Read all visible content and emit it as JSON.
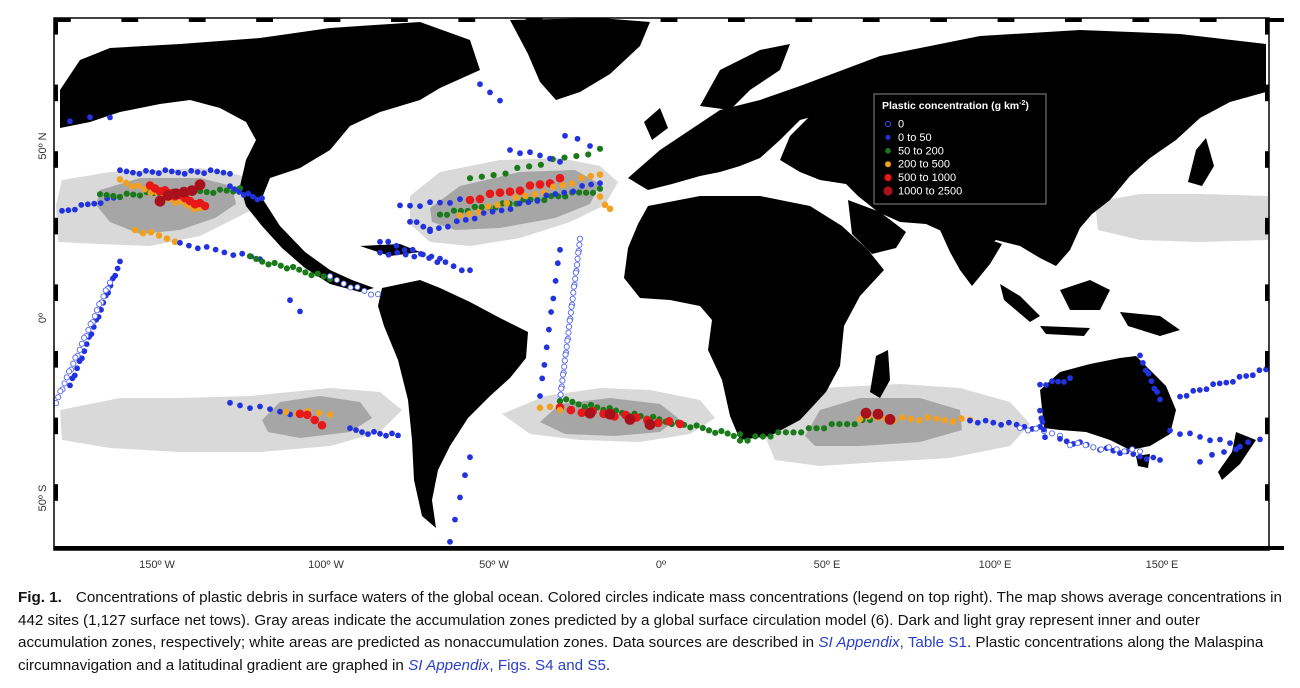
{
  "map": {
    "lat_labels": [
      "50º N",
      "0º",
      "50º S"
    ],
    "lon_labels": [
      "150º W",
      "100º W",
      "50º W",
      "0º",
      "50º E",
      "100º E",
      "150º E"
    ],
    "colors": {
      "land": "#000000",
      "ocean": "#ffffff",
      "outer_zone": "#d9d9d9",
      "inner_zone": "#a6a6a6"
    }
  },
  "legend": {
    "title": "Plastic concentration (g km",
    "title_sup": "-2",
    "title_end": ")",
    "placement": "top-right",
    "classes": [
      {
        "label": "0",
        "color": "#2233cc",
        "style": "open"
      },
      {
        "label": "0  to  50",
        "color": "#2233dd",
        "style": "filled"
      },
      {
        "label": "50  to  200",
        "color": "#1a7a1a",
        "style": "filled"
      },
      {
        "label": "200  to  500",
        "color": "#f2a020",
        "style": "filled"
      },
      {
        "label": "500  to  1000",
        "color": "#e81818",
        "style": "filled"
      },
      {
        "label": "1000  to  2500",
        "color": "#a8101c",
        "style": "filled"
      }
    ]
  },
  "caption": {
    "label": "Fig. 1.",
    "part1": "Concentrations of plastic debris in surface waters of the global ocean. Colored circles indicate mass concentrations (legend on top right). The map shows average concentrations in 442 sites (1,127 surface net tows). Gray areas indicate the accumulation zones predicted by a global surface circulation model (6). Dark and light gray represent inner and outer accumulation zones, respectively; white areas are predicted as nonaccumulation zones. Data sources are described in ",
    "link1_italic": "SI Appendix",
    "link1_rest": ", Table S1",
    "part2": ". Plastic concentrations along the Malaspina circumnavigation and a latitudinal gradient are graphed in ",
    "link2_italic": "SI Appendix",
    "link2_rest": ", Figs. S4 and S5",
    "part3": "."
  }
}
